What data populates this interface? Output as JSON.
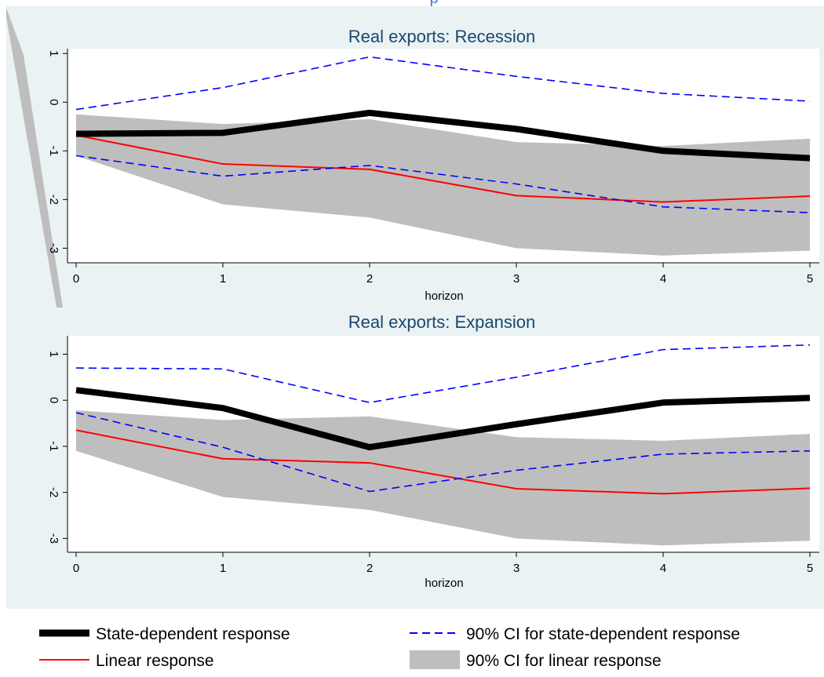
{
  "header_fragment": "p",
  "colors": {
    "plot_region": "#eaf2f3",
    "ci_band": "#bebebe",
    "state_dependent": "#000000",
    "linear": "#ff0000",
    "state_ci": "#0000ff"
  },
  "legend": {
    "state_dependent": "State-dependent response",
    "state_ci": "90% CI for state-dependent response",
    "linear": "Linear response",
    "linear_ci": "90% CI for linear response"
  },
  "chart_data": [
    {
      "type": "line",
      "title": "Real exports: Recession",
      "xlabel": "horizon",
      "ylabel": "",
      "x": [
        0,
        1,
        2,
        3,
        4,
        5
      ],
      "xticks": [
        "0",
        "1",
        "2",
        "3",
        "4",
        "5"
      ],
      "yticks": [
        "-3",
        "-2",
        "-1",
        "0",
        "1"
      ],
      "xlim": [
        0,
        5
      ],
      "ylim": [
        -3.3,
        1.1
      ],
      "series": [
        {
          "name": "State-dependent response",
          "values": [
            -0.65,
            -0.63,
            -0.22,
            -0.55,
            -1.0,
            -1.15
          ]
        },
        {
          "name": "Linear response",
          "values": [
            -0.68,
            -1.27,
            -1.38,
            -1.92,
            -2.05,
            -1.93
          ]
        },
        {
          "name": "90% CI for state-dependent response",
          "values": [
            -0.15,
            0.3,
            0.93,
            0.53,
            0.18,
            0.02
          ]
        },
        {
          "name": "90% CI for state-dependent response",
          "values": [
            -1.1,
            -1.52,
            -1.3,
            -1.68,
            -2.15,
            -2.27
          ]
        }
      ],
      "band": {
        "name": "90% CI for linear response",
        "lower": [
          -1.1,
          -2.1,
          -2.37,
          -3.0,
          -3.15,
          -3.05
        ],
        "upper": [
          -0.25,
          -0.45,
          -0.35,
          -0.82,
          -0.9,
          -0.75
        ]
      }
    },
    {
      "type": "line",
      "title": "Real exports: Expansion",
      "xlabel": "horizon",
      "ylabel": "",
      "x": [
        0,
        1,
        2,
        3,
        4,
        5
      ],
      "xticks": [
        "0",
        "1",
        "2",
        "3",
        "4",
        "5"
      ],
      "yticks": [
        "-3",
        "-2",
        "-1",
        "0",
        "1"
      ],
      "xlim": [
        0,
        5
      ],
      "ylim": [
        -3.3,
        1.4
      ],
      "series": [
        {
          "name": "State-dependent response",
          "values": [
            0.22,
            -0.17,
            -1.02,
            -0.52,
            -0.05,
            0.05
          ]
        },
        {
          "name": "Linear response",
          "values": [
            -0.65,
            -1.27,
            -1.36,
            -1.92,
            -2.03,
            -1.91
          ]
        },
        {
          "name": "90% CI for state-dependent response",
          "values": [
            0.7,
            0.68,
            -0.05,
            0.5,
            1.1,
            1.2
          ]
        },
        {
          "name": "90% CI for state-dependent response",
          "values": [
            -0.27,
            -1.02,
            -1.98,
            -1.52,
            -1.17,
            -1.1
          ]
        }
      ],
      "band": {
        "name": "90% CI for linear response",
        "lower": [
          -1.1,
          -2.1,
          -2.38,
          -3.0,
          -3.15,
          -3.05
        ],
        "upper": [
          -0.22,
          -0.43,
          -0.35,
          -0.8,
          -0.88,
          -0.73
        ]
      }
    }
  ]
}
